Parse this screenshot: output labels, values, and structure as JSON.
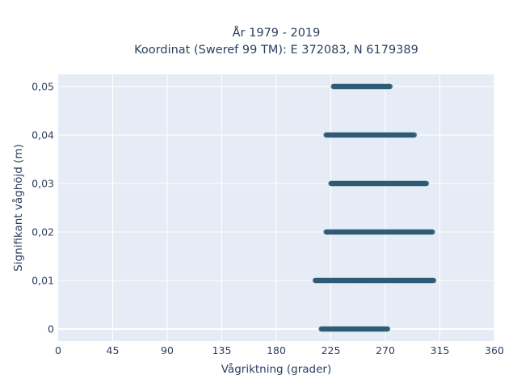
{
  "colors": {
    "plot_bg": "#e5ecf6",
    "grid": "#ffffff",
    "marker": "#2f5b75",
    "text": "#2a3f5f"
  },
  "chart_data": {
    "type": "scatter",
    "title_lines": [
      "År 1979 - 2019",
      "Koordinat (Sweref 99 TM): E 372083, N 6179389"
    ],
    "xlabel": "Vågriktning (grader)",
    "ylabel": "Signifikant våghöjd (m)",
    "xlim": [
      0,
      360
    ],
    "ylim": [
      -0.0025,
      0.0525
    ],
    "xticks": [
      0,
      45,
      90,
      135,
      180,
      225,
      270,
      315,
      360
    ],
    "xtick_labels": [
      "0",
      "45",
      "90",
      "135",
      "180",
      "225",
      "270",
      "315",
      "360"
    ],
    "yticks": [
      0,
      0.01,
      0.02,
      0.03,
      0.04,
      0.05
    ],
    "ytick_labels": [
      "0",
      "0,01",
      "0,02",
      "0,03",
      "0,04",
      "0,05"
    ],
    "grid": true,
    "series": [
      {
        "bands": [
          {
            "y": 0.0,
            "x_min": 217,
            "x_max": 272
          },
          {
            "y": 0.01,
            "x_min": 212,
            "x_max": 310
          },
          {
            "y": 0.02,
            "x_min": 221,
            "x_max": 309
          },
          {
            "y": 0.03,
            "x_min": 225,
            "x_max": 304
          },
          {
            "y": 0.04,
            "x_min": 221,
            "x_max": 294
          },
          {
            "y": 0.05,
            "x_min": 227,
            "x_max": 274
          }
        ]
      }
    ]
  }
}
